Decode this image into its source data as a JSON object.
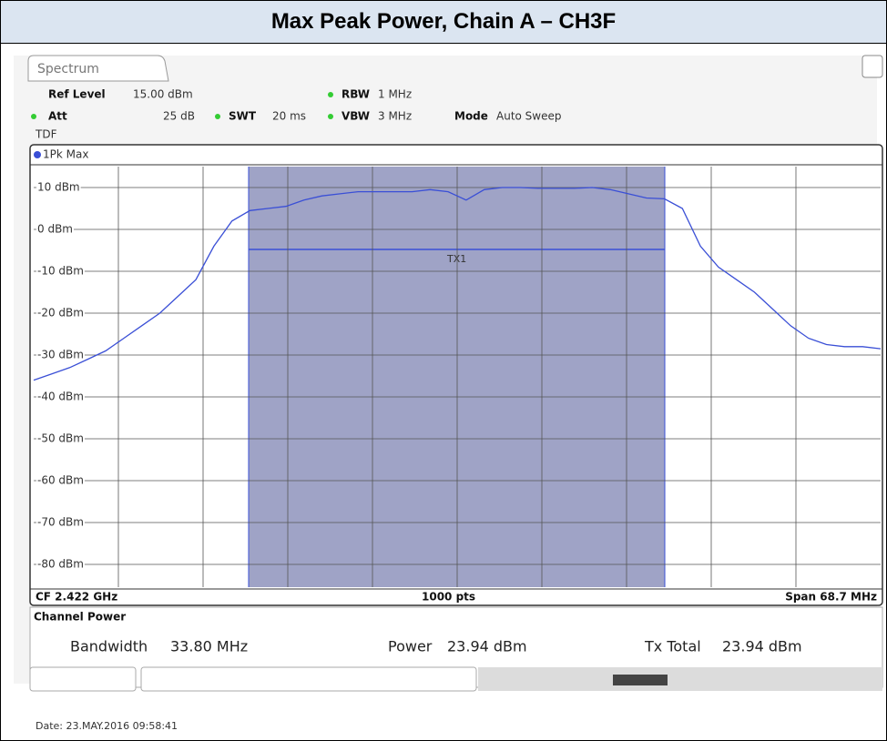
{
  "title": "Max Peak Power, Chain A – CH3F",
  "screen": {
    "tab": "Spectrum",
    "ref_level_label": "Ref Level",
    "ref_level": "15.00 dBm",
    "rbw_label": "RBW",
    "rbw": "1 MHz",
    "att_label": "Att",
    "att": "25 dB",
    "swt_label": "SWT",
    "swt": "20 ms",
    "vbw_label": "VBW",
    "vbw": "3 MHz",
    "mode_label": "Mode",
    "mode": "Auto Sweep",
    "tdf": "TDF",
    "trace_label": "1Pk Max",
    "channel_label": "TX1",
    "cf": "CF 2.422 GHz",
    "points": "1000 pts",
    "span": "Span 68.7 MHz",
    "channel_power": {
      "title": "Channel Power",
      "bandwidth_label": "Bandwidth",
      "bandwidth": "33.80 MHz",
      "power_label": "Power",
      "power": "23.94 dBm",
      "total_label": "Tx Total",
      "total": "23.94 dBm"
    },
    "date": "Date: 23.MAY.2016  09:58:41"
  },
  "chart_data": {
    "type": "line",
    "color": "#3a4fd6",
    "values": [
      -36,
      -34.5,
      -33,
      -31,
      -29,
      -26,
      -23,
      -20,
      -16,
      -12,
      -4,
      2,
      4.5,
      5,
      5.5,
      7,
      8,
      8.5,
      9,
      9,
      9,
      9,
      9.5,
      9,
      7,
      9.5,
      10,
      10,
      9.8,
      9.8,
      9.8,
      10,
      9.5,
      8.5,
      7.5,
      7.3,
      5,
      -4,
      -9,
      -12,
      -15,
      -19,
      -23,
      -26,
      -27.5,
      -28,
      -28,
      -28.5
    ],
    "ylim": [
      -85,
      15
    ],
    "yticks": [
      {
        "value": 10,
        "label": "10 dBm"
      },
      {
        "value": 0,
        "label": "0 dBm"
      },
      {
        "value": -10,
        "label": "-10 dBm"
      },
      {
        "value": -20,
        "label": "-20 dBm"
      },
      {
        "value": -30,
        "label": "-30 dBm"
      },
      {
        "value": -40,
        "label": "-40 dBm"
      },
      {
        "value": -50,
        "label": "-50 dBm"
      },
      {
        "value": -60,
        "label": "-60 dBm"
      },
      {
        "value": -70,
        "label": "-70 dBm"
      },
      {
        "value": -80,
        "label": "-80 dBm"
      }
    ],
    "grid": true
  }
}
